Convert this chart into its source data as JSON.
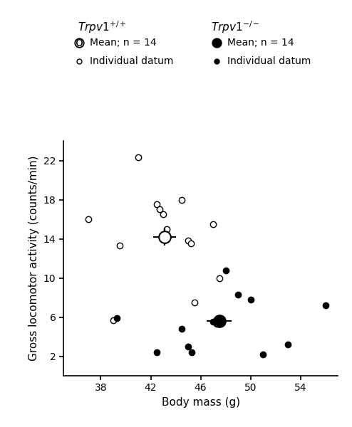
{
  "xlabel": "Body mass (g)",
  "ylabel": "Gross locomotor activity (counts/min)",
  "xlim": [
    35,
    57
  ],
  "ylim": [
    0,
    24
  ],
  "xticks": [
    38,
    42,
    46,
    50,
    54
  ],
  "yticks": [
    2,
    6,
    10,
    14,
    18,
    22
  ],
  "wt_individuals_x": [
    37.0,
    39.5,
    41.0,
    42.5,
    42.7,
    43.0,
    43.3,
    44.5,
    45.0,
    45.2,
    47.0,
    47.5,
    39.0,
    45.5
  ],
  "wt_individuals_y": [
    16.0,
    13.3,
    22.3,
    17.5,
    17.0,
    16.5,
    15.0,
    18.0,
    13.8,
    13.5,
    15.5,
    10.0,
    5.7,
    7.5
  ],
  "wt_mean_x": 43.1,
  "wt_mean_y": 14.2,
  "wt_mean_xe": 0.9,
  "wt_mean_ye": 0.9,
  "ko_individuals_x": [
    39.3,
    42.5,
    44.5,
    45.0,
    45.3,
    47.0,
    47.3,
    47.5,
    48.0,
    49.0,
    50.0,
    51.0,
    53.0,
    56.0
  ],
  "ko_individuals_y": [
    5.9,
    2.4,
    4.8,
    3.0,
    2.4,
    5.5,
    5.3,
    5.5,
    10.8,
    8.3,
    7.8,
    2.2,
    3.2,
    7.2
  ],
  "ko_mean_x": 47.5,
  "ko_mean_y": 5.6,
  "ko_mean_xe": 1.0,
  "ko_mean_ye": 0.5,
  "marker_size_individual": 6,
  "marker_size_mean": 12,
  "color_wt": "white",
  "color_ko": "black",
  "edgecolor": "black"
}
